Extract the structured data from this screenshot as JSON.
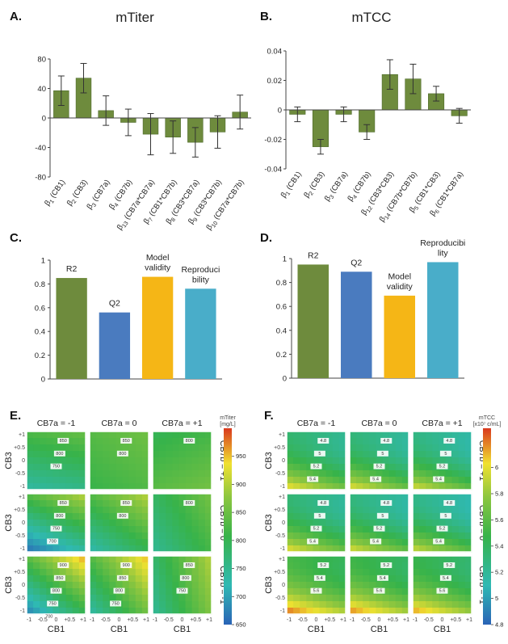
{
  "chart_data": [
    {
      "id": "A",
      "panel_label": "A.",
      "type": "bar",
      "title": "mTiter",
      "categories": [
        "β1 (CB1)",
        "β2 (CB3)",
        "β3 (CB7a)",
        "β4 (CB7b)",
        "β13 (CB7a*CB7a)",
        "β7 (CB1*CB7b)",
        "β8 (CB3*CB7a)",
        "β9 (CB3*CB7b)",
        "β10 (CB7a*CB7b)"
      ],
      "cat_main": [
        "β",
        "β",
        "β",
        "β",
        "β",
        "β",
        "β",
        "β",
        "β"
      ],
      "cat_sub": [
        "1",
        "2",
        "3",
        "4",
        "13",
        "7",
        "8",
        "9",
        "10"
      ],
      "cat_rest": [
        " (CB1)",
        " (CB3)",
        " (CB7a)",
        " (CB7b)",
        " (CB7a*CB7a)",
        " (CB1*CB7b)",
        " (CB3*CB7a)",
        " (CB3*CB7b)",
        " (CB7a*CB7b)"
      ],
      "values": [
        37,
        54,
        10,
        -6,
        -22,
        -26,
        -33,
        -19,
        8
      ],
      "errors": [
        20,
        20,
        20,
        18,
        28,
        22,
        20,
        22,
        23
      ],
      "ylim": [
        -80,
        80
      ],
      "yticks": [
        80,
        40,
        0,
        -40,
        -80
      ],
      "ytick_labels": [
        "80",
        "40",
        "0",
        "-40",
        "-80"
      ],
      "color": "#6e8b3d"
    },
    {
      "id": "B",
      "panel_label": "B.",
      "type": "bar",
      "title": "mTCC",
      "categories": [
        "β1 (CB1)",
        "β2 (CB3)",
        "β3 (CB7a)",
        "β4 (CB7b)",
        "β12 (CB3*CB3)",
        "β14 (CB7b*CB7b)",
        "β5 (CB1*CB3)",
        "β6 (CB1*CB7a)"
      ],
      "cat_main": [
        "β",
        "β",
        "β",
        "β",
        "β",
        "β",
        "β",
        "β"
      ],
      "cat_sub": [
        "1",
        "2",
        "3",
        "4",
        "12",
        "14",
        "5",
        "6"
      ],
      "cat_rest": [
        " (CB1)",
        " (CB3)",
        " (CB7a)",
        " (CB7b)",
        " (CB3*CB3)",
        " (CB7b*CB7b)",
        " (CB1*CB3)",
        " (CB1*CB7a)"
      ],
      "values": [
        -0.003,
        -0.025,
        -0.003,
        -0.015,
        0.024,
        0.021,
        0.011,
        -0.004
      ],
      "errors": [
        0.005,
        0.005,
        0.005,
        0.005,
        0.01,
        0.01,
        0.005,
        0.005
      ],
      "ylim": [
        -0.04,
        0.04
      ],
      "yticks": [
        0.04,
        0.02,
        0,
        -0.02,
        -0.04
      ],
      "ytick_labels": [
        "0.04",
        "0.02",
        "0",
        "-0.02",
        "-0.04"
      ],
      "color": "#6e8b3d"
    },
    {
      "id": "C",
      "panel_label": "C.",
      "type": "bar",
      "bar_labels": [
        [
          "R2"
        ],
        [
          "Q2"
        ],
        [
          "Model",
          "validity"
        ],
        [
          "Reproduci",
          "bility"
        ]
      ],
      "values": [
        0.85,
        0.56,
        0.86,
        0.76
      ],
      "colors": [
        "#6e8b3d",
        "#4a7bbf",
        "#f5b616",
        "#49adc9"
      ],
      "ylim": [
        0,
        1
      ],
      "yticks": [
        1,
        0.8,
        0.6,
        0.4,
        0.2,
        0
      ],
      "ytick_labels": [
        "1",
        "0.8",
        "0.6",
        "0.4",
        "0.2",
        "0"
      ]
    },
    {
      "id": "D",
      "panel_label": "D.",
      "type": "bar",
      "bar_labels": [
        [
          "R2"
        ],
        [
          "Q2"
        ],
        [
          "Model",
          "validity"
        ],
        [
          "Reproducibi",
          "lity"
        ]
      ],
      "values": [
        0.95,
        0.89,
        0.69,
        0.97
      ],
      "colors": [
        "#6e8b3d",
        "#4a7bbf",
        "#f5b616",
        "#49adc9"
      ],
      "ylim": [
        0,
        1
      ],
      "yticks": [
        1,
        0.8,
        0.6,
        0.4,
        0.2,
        0
      ],
      "ytick_labels": [
        "1",
        "0.8",
        "0.6",
        "0.4",
        "0.2",
        "0"
      ]
    },
    {
      "id": "E",
      "panel_label": "E.",
      "type": "heatmap",
      "col_headers": [
        "CB7a = -1",
        "CB7a = 0",
        "CB7a = +1"
      ],
      "row_labels": [
        "CB7b = +1",
        "CB7b = 0",
        "CB7b = -1"
      ],
      "xlabel": "CB1",
      "ylabel": "CB3",
      "x_ticks": [
        "-1",
        "-0.5",
        "0",
        "+0.5",
        "+1"
      ],
      "y_ticks": [
        "+1",
        "+0.5",
        "0",
        "-0.5",
        "-1"
      ],
      "colorbar_title": [
        "mTiter",
        "[mg/L]"
      ],
      "colorbar_range": [
        650,
        1000
      ],
      "colorbar_ticks": [
        950,
        900,
        850,
        800,
        750,
        700,
        650
      ],
      "colorbar_tick_labels": [
        "950",
        "900",
        "850",
        "800",
        "750",
        "700",
        "650"
      ],
      "contour_labels": [
        [
          "850",
          "800",
          "750"
        ],
        [
          "850",
          "800"
        ],
        [
          "800"
        ],
        [
          "850",
          "800",
          "750",
          "700"
        ],
        [
          "850",
          "800"
        ],
        [
          "800"
        ],
        [
          "900",
          "850",
          "800",
          "750",
          "700"
        ],
        [
          "900",
          "850",
          "800",
          "750"
        ],
        [
          "850",
          "800",
          "750"
        ]
      ]
    },
    {
      "id": "F",
      "panel_label": "F.",
      "type": "heatmap",
      "col_headers": [
        "CB7a = -1",
        "CB7a = 0",
        "CB7a = +1"
      ],
      "row_labels": [
        "CB7b = +1",
        "CB7b = 0",
        "CB7b = -1"
      ],
      "xlabel": "CB1",
      "ylabel": "CB3",
      "x_ticks": [
        "-1",
        "-0.5",
        "0",
        "+0.5",
        "+1"
      ],
      "y_ticks": [
        "+1",
        "+0.5",
        "0",
        "-0.5",
        "-1"
      ],
      "colorbar_title": [
        "mTCC",
        "[x10⁷ c/mL]"
      ],
      "colorbar_range": [
        4.8,
        6.3
      ],
      "colorbar_ticks": [
        6,
        5.8,
        5.6,
        5.4,
        5.2,
        5,
        4.8
      ],
      "colorbar_tick_labels": [
        "6",
        "5.8",
        "5.6",
        "5.4",
        "5.2",
        "5",
        "4.8"
      ],
      "contour_labels": [
        [
          "4.8",
          "5",
          "5.2",
          "5.4"
        ],
        [
          "4.8",
          "5",
          "5.2",
          "5.4"
        ],
        [
          "4.8",
          "5",
          "5.2",
          "5.4"
        ],
        [
          "4.8",
          "5",
          "5.2",
          "5.4"
        ],
        [
          "4.8",
          "5",
          "5.2",
          "5.4"
        ],
        [
          "4.8",
          "5",
          "5.2",
          "5.4"
        ],
        [
          "5.2",
          "5.4",
          "5.6"
        ],
        [
          "5.2",
          "5.4",
          "5.6"
        ],
        [
          "5.2",
          "5.4",
          "5.6"
        ]
      ]
    }
  ]
}
